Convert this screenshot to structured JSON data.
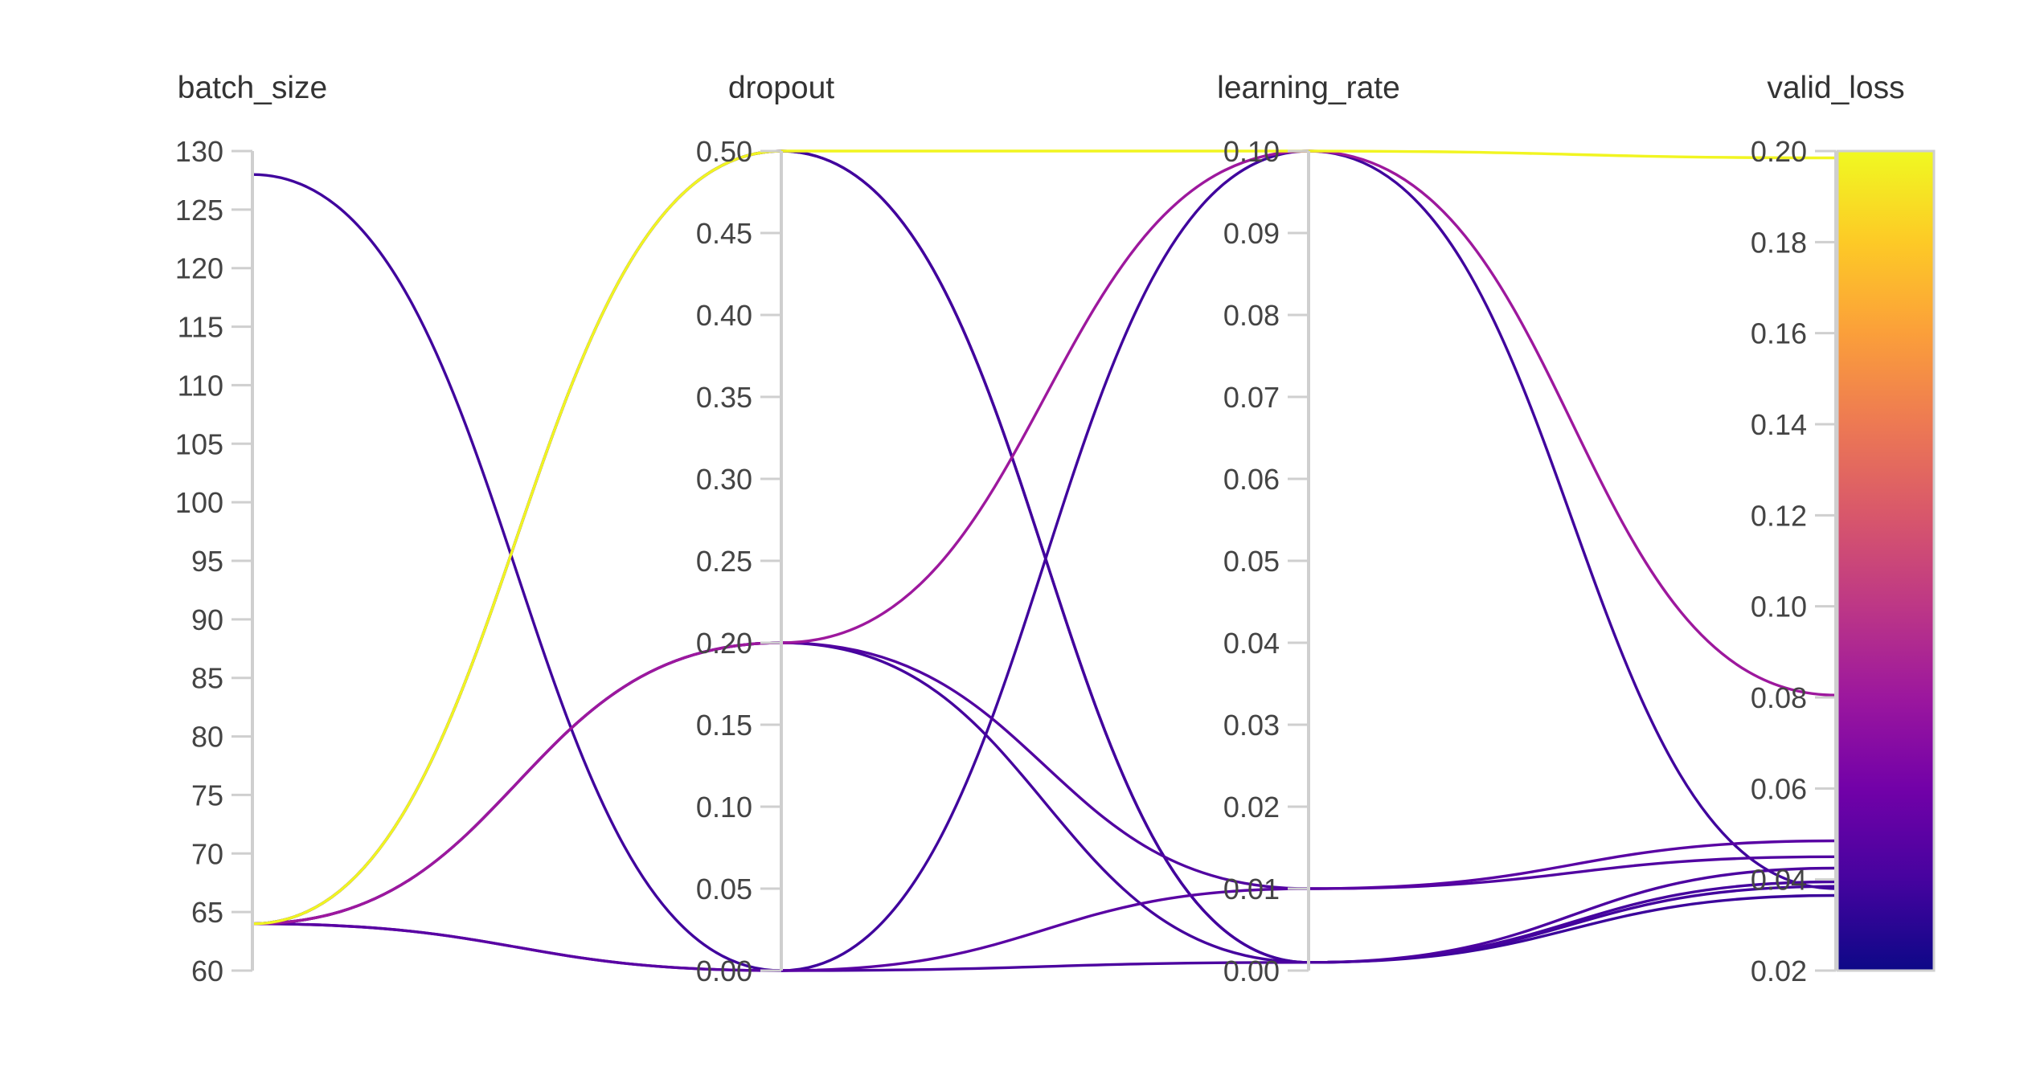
{
  "chart_data": {
    "type": "parallel_coordinates",
    "dimensions": [
      {
        "name": "batch_size",
        "range": [
          60,
          130
        ],
        "ticks": [
          130,
          125,
          120,
          115,
          110,
          105,
          100,
          95,
          90,
          85,
          80,
          75,
          70,
          65,
          60
        ],
        "tick_labels": [
          "130",
          "125",
          "120",
          "115",
          "110",
          "105",
          "100",
          "95",
          "90",
          "85",
          "80",
          "75",
          "70",
          "65",
          "60"
        ]
      },
      {
        "name": "dropout",
        "range": [
          0,
          0.5
        ],
        "ticks": [
          0.5,
          0.45,
          0.4,
          0.35,
          0.3,
          0.25,
          0.2,
          0.15,
          0.1,
          0.05,
          0
        ],
        "tick_labels": [
          "0.50",
          "0.45",
          "0.40",
          "0.35",
          "0.30",
          "0.25",
          "0.20",
          "0.15",
          "0.10",
          "0.05",
          "0.00"
        ]
      },
      {
        "name": "learning_rate",
        "range": [
          0,
          0.1
        ],
        "ticks": [
          0.1,
          0.09,
          0.08,
          0.07,
          0.06,
          0.05,
          0.04,
          0.03,
          0.02,
          0.01,
          0
        ],
        "tick_labels": [
          "0.10",
          "0.09",
          "0.08",
          "0.07",
          "0.06",
          "0.05",
          "0.04",
          "0.03",
          "0.02",
          "0.01",
          "0.00"
        ]
      },
      {
        "name": "valid_loss",
        "range": [
          0.02,
          0.2
        ],
        "ticks": [
          0.2,
          0.18,
          0.16,
          0.14,
          0.12,
          0.1,
          0.08,
          0.06,
          0.04,
          0.02
        ],
        "tick_labels": [
          "0.20",
          "0.18",
          "0.16",
          "0.14",
          "0.12",
          "0.10",
          "0.08",
          "0.06",
          "0.04",
          "0.02"
        ]
      }
    ],
    "runs": [
      {
        "values": [
          64,
          0.5,
          0.1,
          0.1985
        ]
      },
      {
        "values": [
          64,
          0.2,
          0.1,
          0.0805
        ]
      },
      {
        "values": [
          128,
          0.0,
          0.1,
          0.038
        ]
      },
      {
        "values": [
          64,
          0.5,
          0.001,
          0.0385
        ]
      },
      {
        "values": [
          64,
          0.5,
          0.001,
          0.0365
        ]
      },
      {
        "values": [
          64,
          0.2,
          0.01,
          0.045
        ]
      },
      {
        "values": [
          64,
          0.2,
          0.001,
          0.0395
        ]
      },
      {
        "values": [
          64,
          0.0,
          0.01,
          0.0485
        ]
      },
      {
        "values": [
          64,
          0.0,
          0.001,
          0.0425
        ]
      }
    ],
    "colorbar": {
      "dimension": "valid_loss",
      "range": [
        0.02,
        0.2
      ],
      "colorscale": [
        "#0d0887",
        "#46039f",
        "#7201a8",
        "#9c179e",
        "#bd3786",
        "#d8576b",
        "#ed7953",
        "#fb9f3a",
        "#fdca26",
        "#f0f921"
      ]
    },
    "title": "",
    "legend": "none"
  }
}
